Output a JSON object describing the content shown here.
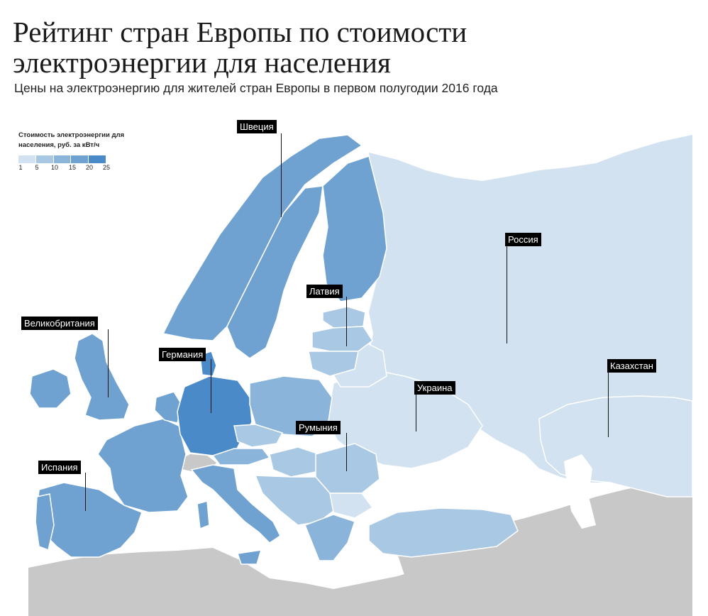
{
  "header": {
    "title": "Рейтинг стран Европы по стоимости электроэнергии для населения",
    "subtitle": "Цены на электроэнергию для жителей стран Европы в первом полугодии 2016 года"
  },
  "legend": {
    "title": "Стоимость электроэнергии для населения, руб. за кВт/ч",
    "ticks": [
      "1",
      "5",
      "10",
      "15",
      "20",
      "25"
    ],
    "colors": [
      "#d2e2f0",
      "#a9c8e3",
      "#8ab4da",
      "#6fa2d1",
      "#4a8ac9"
    ]
  },
  "colors": {
    "no_data": "#c8c8c8",
    "sea": "#ffffff",
    "border": "#ffffff"
  },
  "countries": {
    "sweden": "Швеция",
    "russia": "Россия",
    "latvia": "Латвия",
    "uk": "Великобритания",
    "germany": "Германия",
    "ukraine": "Украина",
    "kazakhstan": "Казахстан",
    "romania": "Румыния",
    "spain": "Испания"
  }
}
